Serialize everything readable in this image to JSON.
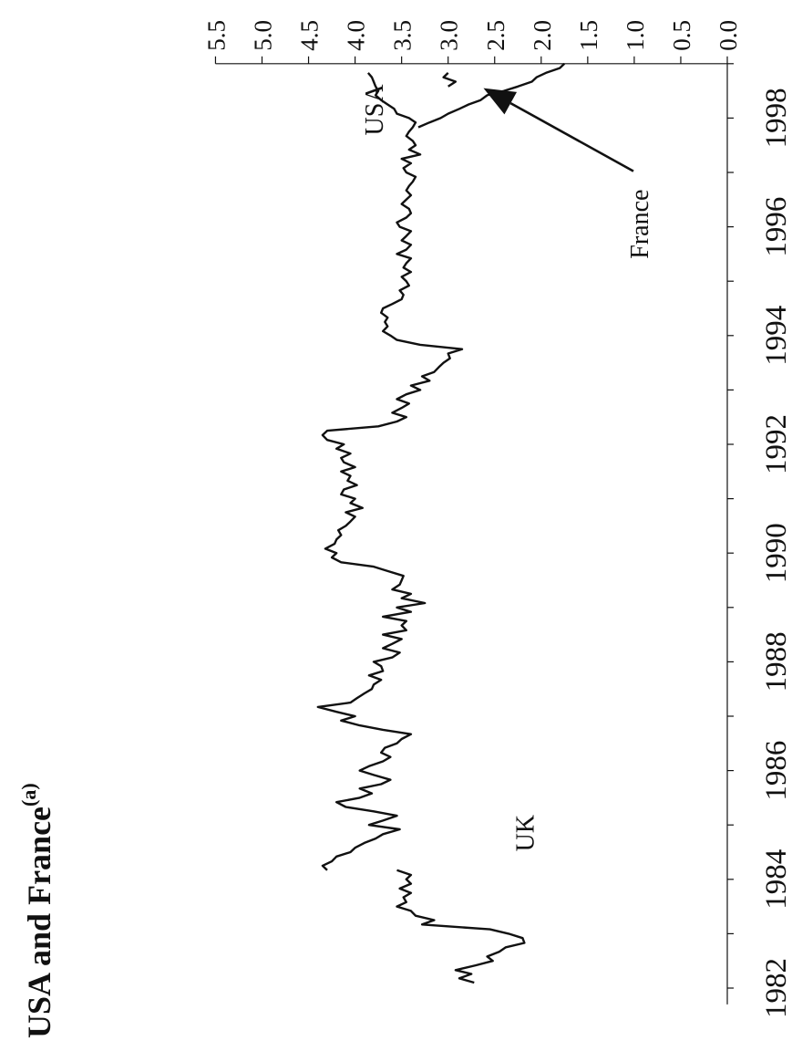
{
  "chart_data": {
    "type": "line",
    "orientation": "rotated-90-clockwise",
    "title_main": "USA and France",
    "title_sup": "(a)",
    "xlabel": "",
    "ylabel": "",
    "xlim": [
      1981.7,
      1999.0
    ],
    "ylim": [
      0.0,
      5.5
    ],
    "x_ticks": [
      "1982",
      "1984",
      "1986",
      "1988",
      "1990",
      "1992",
      "1994",
      "1996",
      "1998"
    ],
    "y_ticks": [
      "0.0",
      "0.5",
      "1.0",
      "1.5",
      "2.0",
      "2.5",
      "3.0",
      "3.5",
      "4.0",
      "4.5",
      "5.0",
      "5.5"
    ],
    "grid": false,
    "series": [
      {
        "name": "UK",
        "x": [
          1982.1,
          1982.18,
          1982.26,
          1982.33,
          1982.42,
          1982.5,
          1982.58,
          1982.67,
          1982.75,
          1982.83,
          1982.92,
          1983.0,
          1983.08,
          1983.17,
          1983.25,
          1983.33,
          1983.42,
          1983.5,
          1983.58,
          1983.67,
          1983.75,
          1983.83,
          1983.92,
          1984.0,
          1984.08,
          1984.17
        ],
        "values": [
          2.72,
          2.88,
          2.75,
          2.92,
          2.7,
          2.52,
          2.58,
          2.45,
          2.38,
          2.18,
          2.2,
          2.35,
          2.55,
          3.28,
          3.15,
          3.35,
          3.4,
          3.55,
          3.45,
          3.48,
          3.4,
          3.52,
          3.4,
          3.45,
          3.4,
          3.55
        ]
      },
      {
        "name": "USA",
        "x": [
          1984.17,
          1984.25,
          1984.33,
          1984.42,
          1984.5,
          1984.58,
          1984.67,
          1984.75,
          1984.83,
          1984.92,
          1985.0,
          1985.08,
          1985.17,
          1985.25,
          1985.33,
          1985.42,
          1985.5,
          1985.58,
          1985.67,
          1985.75,
          1985.83,
          1985.92,
          1986.0,
          1986.08,
          1986.17,
          1986.25,
          1986.33,
          1986.42,
          1986.5,
          1986.58,
          1986.67,
          1986.75,
          1986.83,
          1986.92,
          1987.0,
          1987.08,
          1987.17,
          1987.25,
          1987.33,
          1987.42,
          1987.5,
          1987.58,
          1987.67,
          1987.75,
          1987.83,
          1987.92,
          1988.0,
          1988.08,
          1988.17,
          1988.25,
          1988.33,
          1988.42,
          1988.5,
          1988.58,
          1988.67,
          1988.75,
          1988.83,
          1988.92,
          1989.0,
          1989.08,
          1989.17,
          1989.25,
          1989.33,
          1989.42,
          1989.5,
          1989.58,
          1989.67,
          1989.75,
          1989.83,
          1989.92,
          1990.0,
          1990.08,
          1990.17,
          1990.25,
          1990.33,
          1990.42,
          1990.5,
          1990.58,
          1990.67,
          1990.75,
          1990.83,
          1990.92,
          1991.0,
          1991.08,
          1991.17,
          1991.25,
          1991.33,
          1991.42,
          1991.5,
          1991.58,
          1991.67,
          1991.75,
          1991.83,
          1991.92,
          1992.0,
          1992.08,
          1992.17,
          1992.25,
          1992.33,
          1992.42,
          1992.5,
          1992.58,
          1992.67,
          1992.75,
          1992.83,
          1992.92,
          1993.0,
          1993.08,
          1993.17,
          1993.25,
          1993.33,
          1993.42,
          1993.5,
          1993.58,
          1993.67,
          1993.75,
          1993.83,
          1993.92,
          1994.0,
          1994.08,
          1994.17,
          1994.25,
          1994.33,
          1994.42,
          1994.5,
          1994.58,
          1994.67,
          1994.75,
          1994.83,
          1994.92,
          1995.0,
          1995.08,
          1995.17,
          1995.25,
          1995.33,
          1995.42,
          1995.5,
          1995.58,
          1995.67,
          1995.75,
          1995.83,
          1995.92,
          1996.0,
          1996.08,
          1996.17,
          1996.25,
          1996.33,
          1996.42,
          1996.5,
          1996.58,
          1996.67,
          1996.75,
          1996.83,
          1996.92,
          1997.0,
          1997.08,
          1997.17,
          1997.25,
          1997.33,
          1997.42,
          1997.5,
          1997.58,
          1997.67,
          1997.75,
          1997.83,
          1997.92,
          1998.0,
          1998.08,
          1998.17,
          1998.25,
          1998.33,
          1998.42,
          1998.5,
          1998.58,
          1998.67,
          1998.75,
          1998.83
        ],
        "values": [
          4.3,
          4.35,
          4.25,
          4.2,
          4.05,
          4.0,
          3.9,
          3.78,
          3.7,
          3.52,
          3.85,
          3.7,
          3.55,
          3.8,
          4.1,
          4.2,
          3.95,
          3.82,
          3.95,
          3.72,
          3.62,
          3.8,
          3.95,
          3.85,
          3.7,
          3.62,
          3.72,
          3.68,
          3.55,
          3.5,
          3.4,
          3.7,
          3.95,
          4.15,
          4.0,
          4.2,
          4.4,
          4.05,
          3.98,
          3.9,
          3.82,
          3.8,
          3.72,
          3.85,
          3.7,
          3.72,
          3.8,
          3.6,
          3.52,
          3.7,
          3.6,
          3.5,
          3.7,
          3.45,
          3.5,
          3.45,
          3.7,
          3.4,
          3.55,
          3.25,
          3.5,
          3.4,
          3.6,
          3.52,
          3.5,
          3.48,
          3.65,
          3.8,
          4.15,
          4.25,
          4.2,
          4.32,
          4.22,
          4.2,
          4.15,
          4.18,
          4.1,
          4.05,
          4.0,
          4.1,
          3.92,
          4.05,
          4.0,
          4.15,
          4.12,
          3.98,
          4.08,
          4.05,
          4.15,
          4.0,
          4.12,
          4.15,
          4.05,
          4.2,
          4.12,
          4.3,
          4.35,
          4.3,
          3.75,
          3.55,
          3.45,
          3.6,
          3.5,
          3.42,
          3.55,
          3.45,
          3.3,
          3.4,
          3.2,
          3.28,
          3.15,
          3.1,
          3.05,
          2.98,
          3.0,
          2.85,
          3.3,
          3.55,
          3.62,
          3.7,
          3.65,
          3.68,
          3.65,
          3.72,
          3.7,
          3.6,
          3.5,
          3.48,
          3.52,
          3.42,
          3.45,
          3.5,
          3.4,
          3.48,
          3.45,
          3.4,
          3.55,
          3.45,
          3.4,
          3.5,
          3.45,
          3.4,
          3.52,
          3.55,
          3.45,
          3.4,
          3.42,
          3.5,
          3.45,
          3.4,
          3.45,
          3.42,
          3.38,
          3.35,
          3.45,
          3.48,
          3.4,
          3.5,
          3.3,
          3.42,
          3.35,
          3.38,
          3.45,
          3.42,
          3.38,
          3.35,
          3.42,
          3.55,
          3.58,
          3.65,
          3.72,
          3.78,
          3.75,
          3.78,
          3.8,
          3.82,
          3.86
        ]
      },
      {
        "name": "France",
        "x": [
          1997.83,
          1997.92,
          1998.0,
          1998.08,
          1998.17,
          1998.25,
          1998.33,
          1998.42,
          1998.5,
          1998.58,
          1998.67,
          1998.75,
          1998.83,
          1998.92,
          1999.0
        ],
        "values": [
          3.32,
          3.2,
          3.08,
          3.0,
          2.88,
          2.78,
          2.65,
          2.58,
          2.4,
          2.25,
          2.1,
          2.05,
          1.95,
          1.8,
          1.75
        ]
      },
      {
        "name": "France-fragment",
        "x": [
          1998.58,
          1998.67,
          1998.75,
          1998.83
        ],
        "values": [
          3.0,
          2.92,
          3.05,
          3.0
        ]
      }
    ],
    "annotations": [
      {
        "text": "UK",
        "x": 1984.85,
        "y": 2.18
      },
      {
        "text": "USA",
        "x": 1998.15,
        "y": 3.8
      },
      {
        "text": "France",
        "x": 1996.05,
        "y": 0.95,
        "arrow_to": {
          "x": 1998.55,
          "y": 2.62
        }
      }
    ]
  }
}
